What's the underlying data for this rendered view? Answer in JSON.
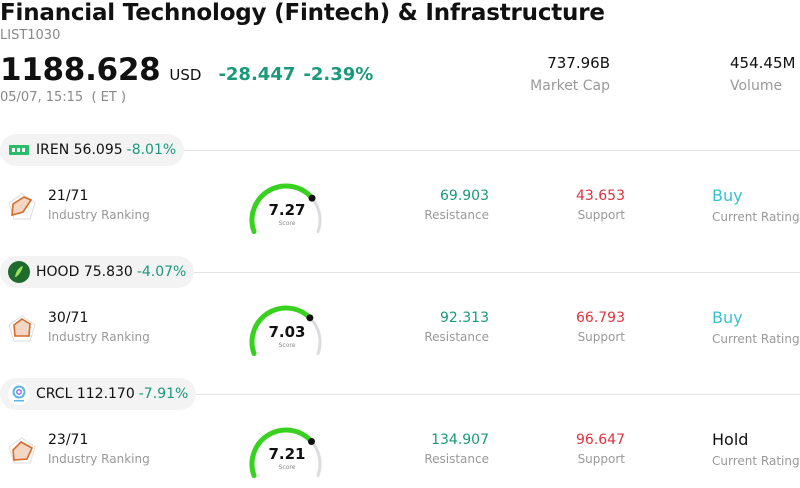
{
  "header": {
    "title": "Financial Technology (Fintech) & Infrastructure",
    "code": "LIST1030",
    "price": "1188.628",
    "currency": "USD",
    "change": "-28.447",
    "change_pct": "-2.39%",
    "timestamp": "05/07, 15:15  ( ET )",
    "market_cap_value": "737.96B",
    "market_cap_label": "Market Cap",
    "volume_value": "454.45M",
    "volume_label": "Volume"
  },
  "colors": {
    "positive_green": "#1a9a7a",
    "negative_red": "#e0323e",
    "buy_teal": "#38c3cc",
    "gauge_green": "#39d11f",
    "gauge_gray": "#dcdce0"
  },
  "stocks": [
    {
      "ticker": "IREN",
      "price": "56.095",
      "change_pct": "-8.01%",
      "logo_icon": "iren-logo-icon",
      "ranking": "21/71",
      "ranking_label": "Industry Ranking",
      "score": "7.27",
      "score_fraction": 0.727,
      "score_label": "Score",
      "resistance": "69.903",
      "resistance_label": "Resistance",
      "support": "43.653",
      "support_label": "Support",
      "rating": "Buy",
      "rating_label": "Current Rating"
    },
    {
      "ticker": "HOOD",
      "price": "75.830",
      "change_pct": "-4.07%",
      "logo_icon": "hood-logo-icon",
      "ranking": "30/71",
      "ranking_label": "Industry Ranking",
      "score": "7.03",
      "score_fraction": 0.703,
      "score_label": "Score",
      "resistance": "92.313",
      "resistance_label": "Resistance",
      "support": "66.793",
      "support_label": "Support",
      "rating": "Buy",
      "rating_label": "Current Rating"
    },
    {
      "ticker": "CRCL",
      "price": "112.170",
      "change_pct": "-7.91%",
      "logo_icon": "crcl-logo-icon",
      "ranking": "23/71",
      "ranking_label": "Industry Ranking",
      "score": "7.21",
      "score_fraction": 0.721,
      "score_label": "Score",
      "resistance": "134.907",
      "resistance_label": "Resistance",
      "support": "96.647",
      "support_label": "Support",
      "rating": "Hold",
      "rating_label": "Current Rating"
    }
  ]
}
